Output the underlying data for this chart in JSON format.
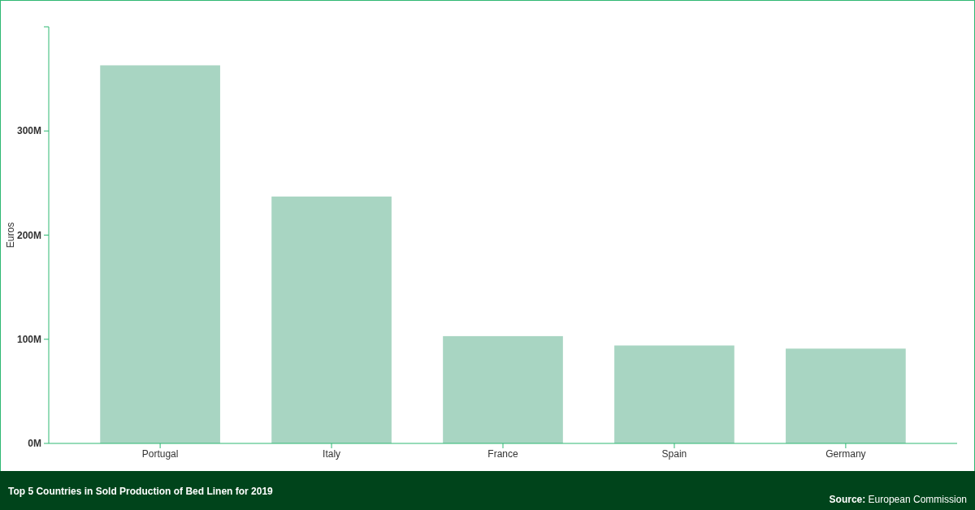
{
  "chart_data": {
    "type": "bar",
    "title": "Top 5 Countries in Sold Production of Bed Linen for 2019",
    "ylabel": "Euros",
    "categories": [
      "Portugal",
      "Italy",
      "France",
      "Spain",
      "Germany"
    ],
    "values": [
      363,
      237,
      103,
      94,
      91
    ],
    "color": "#a8d5c2",
    "ylim": [
      0,
      400
    ],
    "yticks": [
      {
        "value": 0,
        "label": "0M"
      },
      {
        "value": 100,
        "label": "100M"
      },
      {
        "value": 200,
        "label": "200M"
      },
      {
        "value": 300,
        "label": "300M"
      },
      {
        "value": 400,
        "label": null
      }
    ],
    "grid": false,
    "annotations": [
      "Source: European Commission"
    ]
  }
}
